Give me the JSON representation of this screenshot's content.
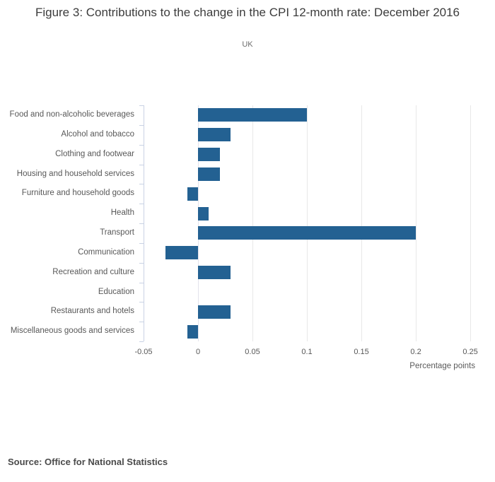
{
  "header": {
    "title": "Figure 3: Contributions to the change in the CPI 12-month rate: December 2016",
    "subtitle": "UK"
  },
  "chart_data": {
    "type": "bar",
    "orientation": "horizontal",
    "title": "Figure 3: Contributions to the change in the CPI 12-month rate: December 2016",
    "subtitle": "UK",
    "categories": [
      "Food and non-alcoholic beverages",
      "Alcohol and tobacco",
      "Clothing and footwear",
      "Housing and household services",
      "Furniture and household goods",
      "Health",
      "Transport",
      "Communication",
      "Recreation and culture",
      "Education",
      "Restaurants and hotels",
      "Miscellaneous goods and services"
    ],
    "values": [
      0.1,
      0.03,
      0.02,
      0.02,
      -0.01,
      0.01,
      0.2,
      -0.03,
      0.03,
      0,
      0.03,
      -0.01
    ],
    "xlabel": "Percentage points",
    "ylabel": "",
    "xlim": [
      -0.05,
      0.2545
    ],
    "xticks": [
      -0.05,
      0,
      0.05,
      0.1,
      0.15,
      0.2,
      0.25
    ],
    "xtick_labels": [
      "-0.05",
      "0",
      "0.05",
      "0.1",
      "0.15",
      "0.2",
      "0.25"
    ],
    "grid": true,
    "legend": "none",
    "colors": {
      "bar": "#236192",
      "gridline": "#e8e8e8",
      "zero_line": "#e3e3ec",
      "axis": "#c9d2e4",
      "text": "#585858"
    }
  },
  "footer": {
    "source": "Source: Office for National Statistics"
  }
}
